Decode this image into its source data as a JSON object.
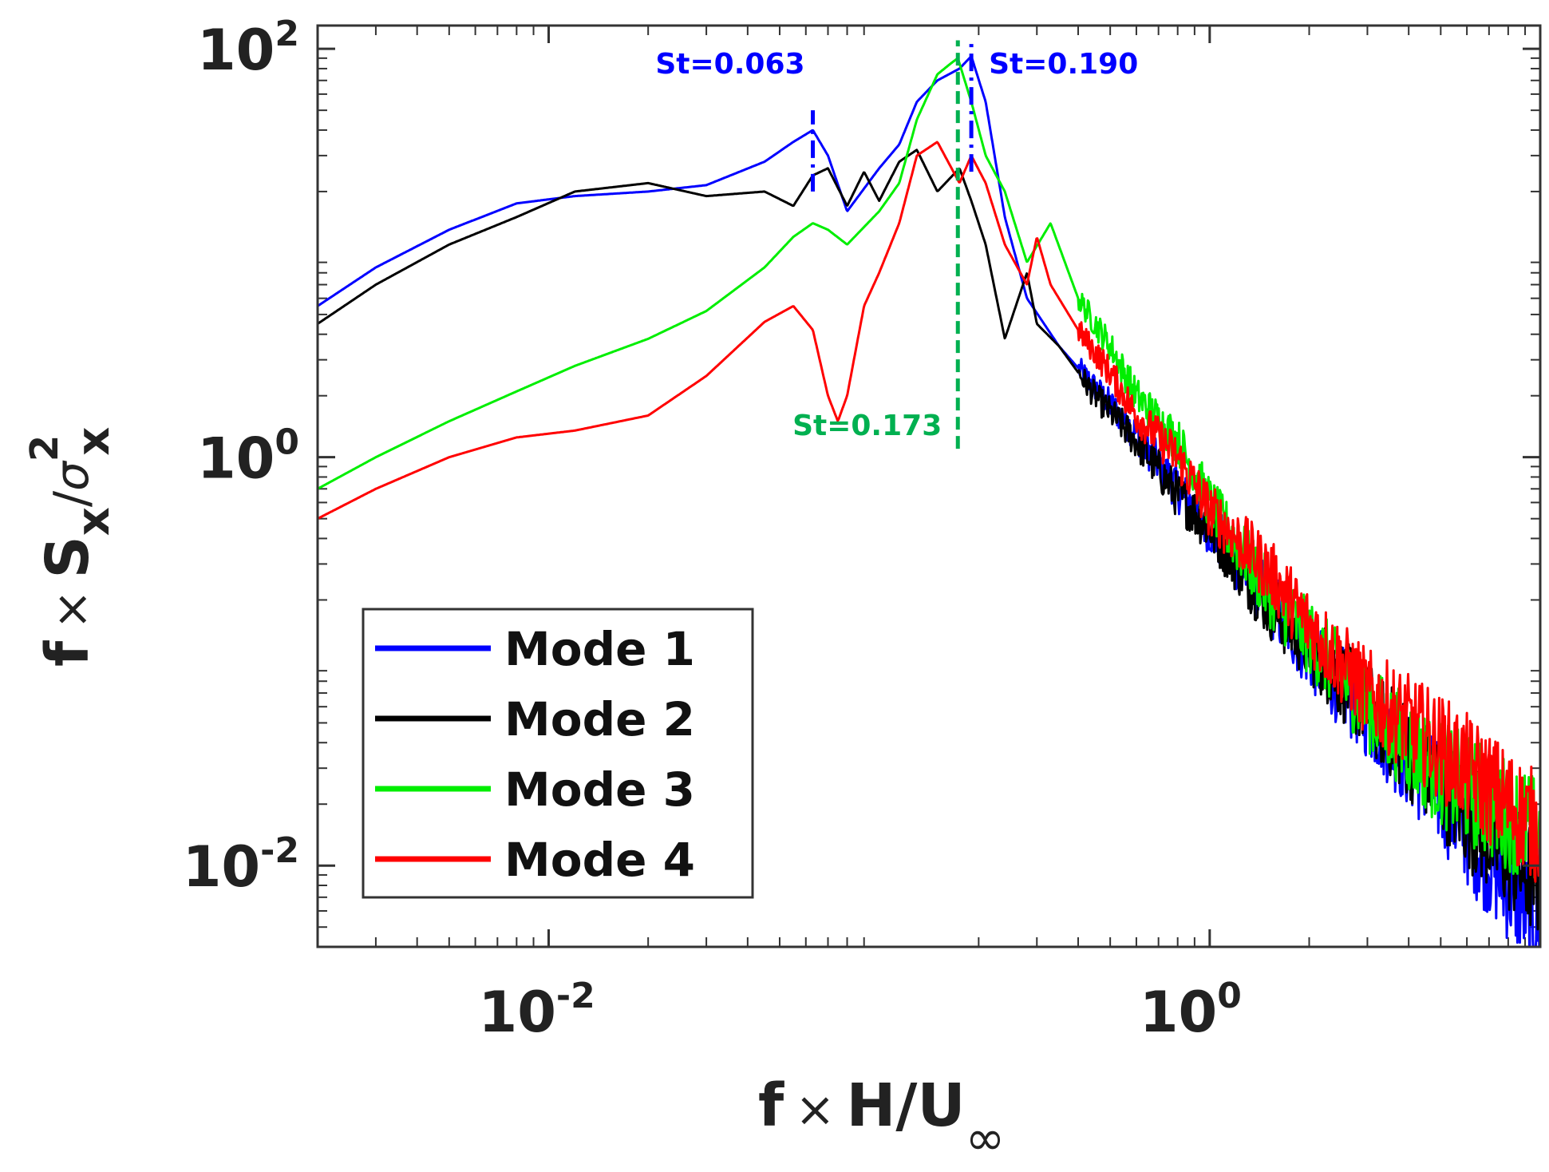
{
  "chart_data": {
    "type": "line",
    "title": "",
    "xlabel": "f × H/U∞",
    "ylabel": "f × S_x/σ_x^2",
    "xscale": "log",
    "yscale": "log",
    "xlim": [
      0.002,
      10
    ],
    "ylim": [
      0.004,
      130
    ],
    "grid": false,
    "legend_position": "bottom-left",
    "x_ticks": [
      {
        "value": 0.01,
        "base": "10",
        "exp": "-2"
      },
      {
        "value": 1,
        "base": "10",
        "exp": "0"
      }
    ],
    "y_ticks": [
      {
        "value": 0.01,
        "base": "10",
        "exp": "-2"
      },
      {
        "value": 1,
        "base": "10",
        "exp": "0"
      },
      {
        "value": 100,
        "base": "10",
        "exp": "2"
      }
    ],
    "series": [
      {
        "name": "Mode 1",
        "color": "#0000ff",
        "x": [
          0.002,
          0.003,
          0.005,
          0.008,
          0.012,
          0.02,
          0.03,
          0.045,
          0.055,
          0.063,
          0.07,
          0.08,
          0.1,
          0.115,
          0.13,
          0.15,
          0.175,
          0.19,
          0.21,
          0.24,
          0.28,
          0.35,
          0.45,
          0.6,
          0.8,
          1.0,
          1.5,
          2.0,
          3.0,
          5.0,
          8.0,
          10.0
        ],
        "y": [
          5.5,
          8.5,
          13,
          17.5,
          19,
          20,
          21.5,
          28,
          35,
          40,
          30,
          16,
          26,
          34,
          55,
          70,
          80,
          92,
          55,
          15,
          6,
          3.5,
          2.2,
          1.3,
          0.7,
          0.45,
          0.2,
          0.11,
          0.055,
          0.022,
          0.008,
          0.005
        ]
      },
      {
        "name": "Mode 2",
        "color": "#000000",
        "x": [
          0.002,
          0.003,
          0.005,
          0.008,
          0.012,
          0.02,
          0.03,
          0.045,
          0.055,
          0.063,
          0.07,
          0.08,
          0.09,
          0.1,
          0.115,
          0.13,
          0.15,
          0.175,
          0.19,
          0.21,
          0.24,
          0.28,
          0.3,
          0.35,
          0.45,
          0.6,
          0.8,
          1.0,
          1.5,
          2.0,
          3.0,
          5.0,
          8.0,
          10.0
        ],
        "y": [
          4.5,
          7,
          11,
          15,
          20,
          22,
          19,
          20,
          17,
          24,
          26,
          17,
          25,
          18,
          28,
          32,
          20,
          26,
          18,
          11,
          3.8,
          8,
          4.5,
          3.5,
          2.0,
          1.2,
          0.65,
          0.45,
          0.19,
          0.12,
          0.06,
          0.025,
          0.011,
          0.008
        ]
      },
      {
        "name": "Mode 3",
        "color": "#00ee00",
        "x": [
          0.002,
          0.003,
          0.005,
          0.008,
          0.012,
          0.02,
          0.03,
          0.045,
          0.055,
          0.063,
          0.07,
          0.08,
          0.1,
          0.115,
          0.13,
          0.15,
          0.165,
          0.173,
          0.19,
          0.21,
          0.24,
          0.28,
          0.33,
          0.4,
          0.5,
          0.6,
          0.8,
          1.0,
          1.5,
          2.0,
          3.0,
          5.0,
          8.0,
          10.0
        ],
        "y": [
          0.7,
          1.0,
          1.5,
          2.1,
          2.8,
          3.8,
          5.2,
          8.5,
          12,
          14,
          13,
          11,
          16,
          22,
          45,
          75,
          85,
          90,
          55,
          30,
          20,
          9,
          14,
          6,
          3.5,
          2.0,
          1.2,
          0.6,
          0.22,
          0.13,
          0.06,
          0.028,
          0.018,
          0.014
        ]
      },
      {
        "name": "Mode 4",
        "color": "#ff0000",
        "x": [
          0.002,
          0.003,
          0.005,
          0.008,
          0.012,
          0.02,
          0.03,
          0.045,
          0.055,
          0.063,
          0.07,
          0.075,
          0.08,
          0.09,
          0.1,
          0.115,
          0.13,
          0.15,
          0.175,
          0.19,
          0.21,
          0.24,
          0.28,
          0.3,
          0.33,
          0.4,
          0.5,
          0.6,
          0.8,
          1.0,
          1.5,
          2.0,
          3.0,
          5.0,
          8.0,
          10.0
        ],
        "y": [
          0.5,
          0.7,
          1.0,
          1.25,
          1.35,
          1.6,
          2.5,
          4.6,
          5.5,
          4.2,
          2.0,
          1.5,
          2.0,
          5.5,
          8,
          14,
          30,
          35,
          22,
          30,
          22,
          11,
          7,
          12,
          7,
          4.2,
          2.6,
          1.6,
          1.0,
          0.55,
          0.28,
          0.15,
          0.07,
          0.038,
          0.02,
          0.015
        ]
      }
    ],
    "annotations": [
      {
        "text": "St=0.063",
        "x": 0.063,
        "color": "#0000ff",
        "line_from": 20,
        "line_to": 50,
        "style": "dashdot"
      },
      {
        "text": "St=0.190",
        "x": 0.19,
        "color": "#0000ff",
        "line_from": 25,
        "line_to": 110,
        "style": "dashdot"
      },
      {
        "text": "St=0.173",
        "x": 0.173,
        "color": "#00b050",
        "line_from": 1.1,
        "line_to": 110,
        "style": "dashed"
      }
    ]
  },
  "legend": {
    "items": [
      {
        "label": "Mode 1",
        "color": "#0000ff"
      },
      {
        "label": "Mode 2",
        "color": "#000000"
      },
      {
        "label": "Mode 3",
        "color": "#00ee00"
      },
      {
        "label": "Mode 4",
        "color": "#ff0000"
      }
    ]
  },
  "axes": {
    "times_symbol": "×",
    "xlabel": {
      "f": "f",
      "rest": "H/U",
      "sub": "∞"
    },
    "ylabel": {
      "f": "f",
      "S": "S",
      "s_sub": "x",
      "slash": "/",
      "sigma": "σ",
      "sig_sup": "2",
      "sig_sub": "x"
    }
  }
}
